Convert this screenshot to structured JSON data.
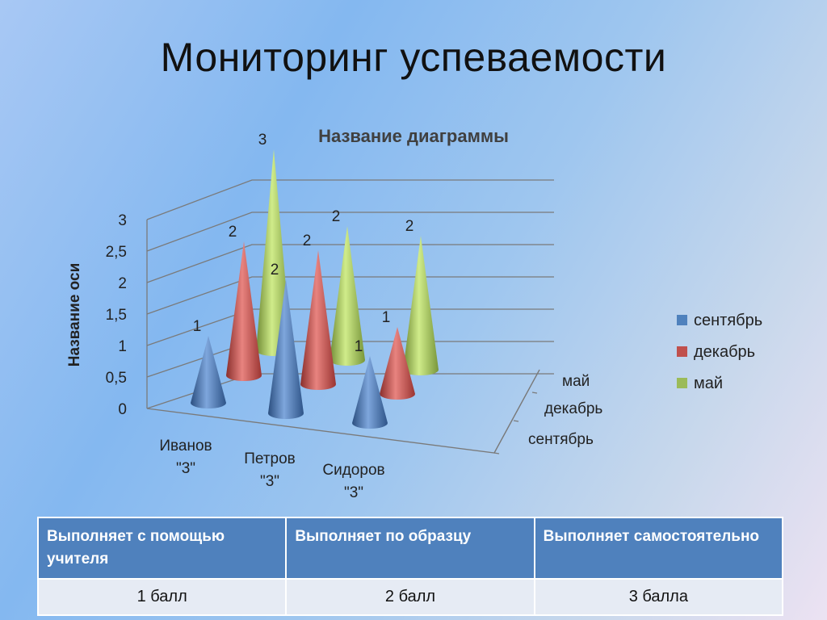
{
  "slide": {
    "title": "Мониторинг успеваемости"
  },
  "chart_data": {
    "type": "bar",
    "subtype": "3d-cone",
    "title": "Название диаграммы",
    "ylabel": "Название оси",
    "ylim": [
      0,
      3
    ],
    "yticks": [
      "0",
      "0,5",
      "1",
      "1,5",
      "2",
      "2,5",
      "3"
    ],
    "categories": [
      "Иванов \"3\"",
      "Петров \"3\"",
      "Сидоров \"3\""
    ],
    "depth_labels": [
      "сентябрь",
      "декабрь",
      "май"
    ],
    "series": [
      {
        "name": "сентябрь",
        "color": "#4f81bd",
        "values": [
          1,
          2,
          1
        ],
        "labels": [
          "1",
          "2",
          "1"
        ]
      },
      {
        "name": "декабрь",
        "color": "#c0504d",
        "values": [
          2,
          2,
          1
        ],
        "labels": [
          "2",
          "2",
          "1"
        ]
      },
      {
        "name": "май",
        "color": "#9bbb59",
        "values": [
          3,
          2,
          2
        ],
        "labels": [
          "3",
          "2",
          "2"
        ]
      }
    ],
    "legend_position": "right",
    "grid": true
  },
  "table": {
    "headers": [
      "Выполняет с помощью учителя",
      "Выполняет по образцу",
      "Выполняет самостоятельно"
    ],
    "cells": [
      "1 балл",
      "2 балл",
      "3 балла"
    ]
  }
}
